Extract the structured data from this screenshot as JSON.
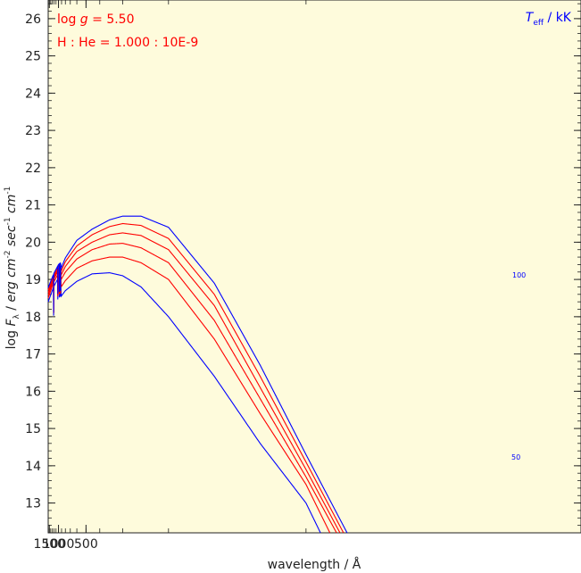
{
  "chart_data": {
    "type": "line",
    "title": "",
    "xlabel": "wavelength / Å",
    "ylabel": "log F_λ / erg cm^-2 sec^-1 cm^-1",
    "ylabel_parts": {
      "log": "log",
      "F": "F",
      "lambda": "λ",
      "slash": " / ",
      "erg": "erg",
      "cm": "cm",
      "exp_m2": "-2",
      "sec": "sec",
      "exp_m1": "-1",
      "cm2": "cm",
      "exp_m1b": "-1"
    },
    "xlim": [
      1600,
      50
    ],
    "ylim": [
      12.2,
      26.5
    ],
    "x_scale": "reciprocal (linear in 1/λ)",
    "xticks": [
      1500,
      1000,
      500
    ],
    "yticks": [
      13,
      14,
      15,
      16,
      17,
      18,
      19,
      20,
      21,
      22,
      23,
      24,
      25,
      26
    ],
    "grid": false,
    "annotations": {
      "logg_prefix": "log ",
      "logg_symbol": "g",
      "logg_value": " = 5.50",
      "abundance": "H : He = 1.000 : 10E-9",
      "teff_symbol": "T",
      "teff_sub": "eff",
      "teff_unit": "/ kK"
    },
    "curve_labels": [
      "100",
      "50"
    ],
    "series": [
      {
        "name": "50",
        "color": "#0000ff",
        "points": [
          [
            1600,
            18.4
          ],
          [
            1216,
            18.8
          ],
          [
            1000,
            19.05
          ],
          [
            930,
            19.1
          ],
          [
            912,
            18.55
          ],
          [
            800,
            18.7
          ],
          [
            600,
            18.95
          ],
          [
            450,
            19.15
          ],
          [
            350,
            19.18
          ],
          [
            300,
            19.1
          ],
          [
            250,
            18.8
          ],
          [
            200,
            18.0
          ],
          [
            150,
            16.4
          ],
          [
            120,
            14.6
          ],
          [
            100,
            13.0
          ],
          [
            95,
            12.2
          ]
        ]
      },
      {
        "name": "",
        "color": "#ff0000",
        "points": [
          [
            1600,
            18.5
          ],
          [
            1216,
            18.92
          ],
          [
            1000,
            19.17
          ],
          [
            930,
            19.22
          ],
          [
            912,
            18.8
          ],
          [
            800,
            18.97
          ],
          [
            600,
            19.3
          ],
          [
            450,
            19.5
          ],
          [
            350,
            19.6
          ],
          [
            300,
            19.6
          ],
          [
            250,
            19.45
          ],
          [
            200,
            19.0
          ],
          [
            150,
            17.4
          ],
          [
            120,
            15.4
          ],
          [
            100,
            13.5
          ],
          [
            92,
            12.2
          ]
        ]
      },
      {
        "name": "",
        "color": "#ff0000",
        "points": [
          [
            1600,
            18.58
          ],
          [
            1216,
            19.0
          ],
          [
            1000,
            19.25
          ],
          [
            930,
            19.3
          ],
          [
            912,
            19.0
          ],
          [
            800,
            19.2
          ],
          [
            600,
            19.55
          ],
          [
            450,
            19.8
          ],
          [
            350,
            19.95
          ],
          [
            300,
            19.97
          ],
          [
            250,
            19.85
          ],
          [
            200,
            19.45
          ],
          [
            150,
            17.9
          ],
          [
            120,
            15.8
          ],
          [
            100,
            13.7
          ],
          [
            90,
            12.2
          ]
        ]
      },
      {
        "name": "",
        "color": "#ff0000",
        "points": [
          [
            1600,
            18.65
          ],
          [
            1216,
            19.05
          ],
          [
            1000,
            19.3
          ],
          [
            930,
            19.35
          ],
          [
            912,
            19.12
          ],
          [
            800,
            19.35
          ],
          [
            600,
            19.75
          ],
          [
            450,
            20.0
          ],
          [
            350,
            20.2
          ],
          [
            300,
            20.25
          ],
          [
            250,
            20.18
          ],
          [
            200,
            19.8
          ],
          [
            150,
            18.3
          ],
          [
            120,
            16.1
          ],
          [
            100,
            13.9
          ],
          [
            89,
            12.2
          ]
        ]
      },
      {
        "name": "",
        "color": "#ff0000",
        "points": [
          [
            1600,
            18.72
          ],
          [
            1216,
            19.1
          ],
          [
            1000,
            19.36
          ],
          [
            930,
            19.4
          ],
          [
            912,
            19.22
          ],
          [
            800,
            19.48
          ],
          [
            600,
            19.9
          ],
          [
            450,
            20.2
          ],
          [
            350,
            20.42
          ],
          [
            300,
            20.5
          ],
          [
            250,
            20.45
          ],
          [
            200,
            20.1
          ],
          [
            150,
            18.6
          ],
          [
            120,
            16.4
          ],
          [
            100,
            14.1
          ],
          [
            88,
            12.2
          ]
        ]
      },
      {
        "name": "100",
        "color": "#0000ff",
        "points": [
          [
            1600,
            18.78
          ],
          [
            1216,
            19.15
          ],
          [
            1000,
            19.4
          ],
          [
            930,
            19.45
          ],
          [
            912,
            19.3
          ],
          [
            800,
            19.58
          ],
          [
            600,
            20.05
          ],
          [
            450,
            20.35
          ],
          [
            350,
            20.6
          ],
          [
            300,
            20.7
          ],
          [
            250,
            20.7
          ],
          [
            200,
            20.4
          ],
          [
            150,
            18.9
          ],
          [
            120,
            16.7
          ],
          [
            100,
            14.3
          ],
          [
            87,
            12.2
          ]
        ]
      }
    ],
    "absorption_lines": [
      1216,
      1026,
      973,
      950,
      938,
      931
    ]
  },
  "colors": {
    "plot_background": "#fefbdc",
    "axis": "#222222",
    "hot_curve": "#0000ff",
    "cool_curve": "#ff0000"
  }
}
